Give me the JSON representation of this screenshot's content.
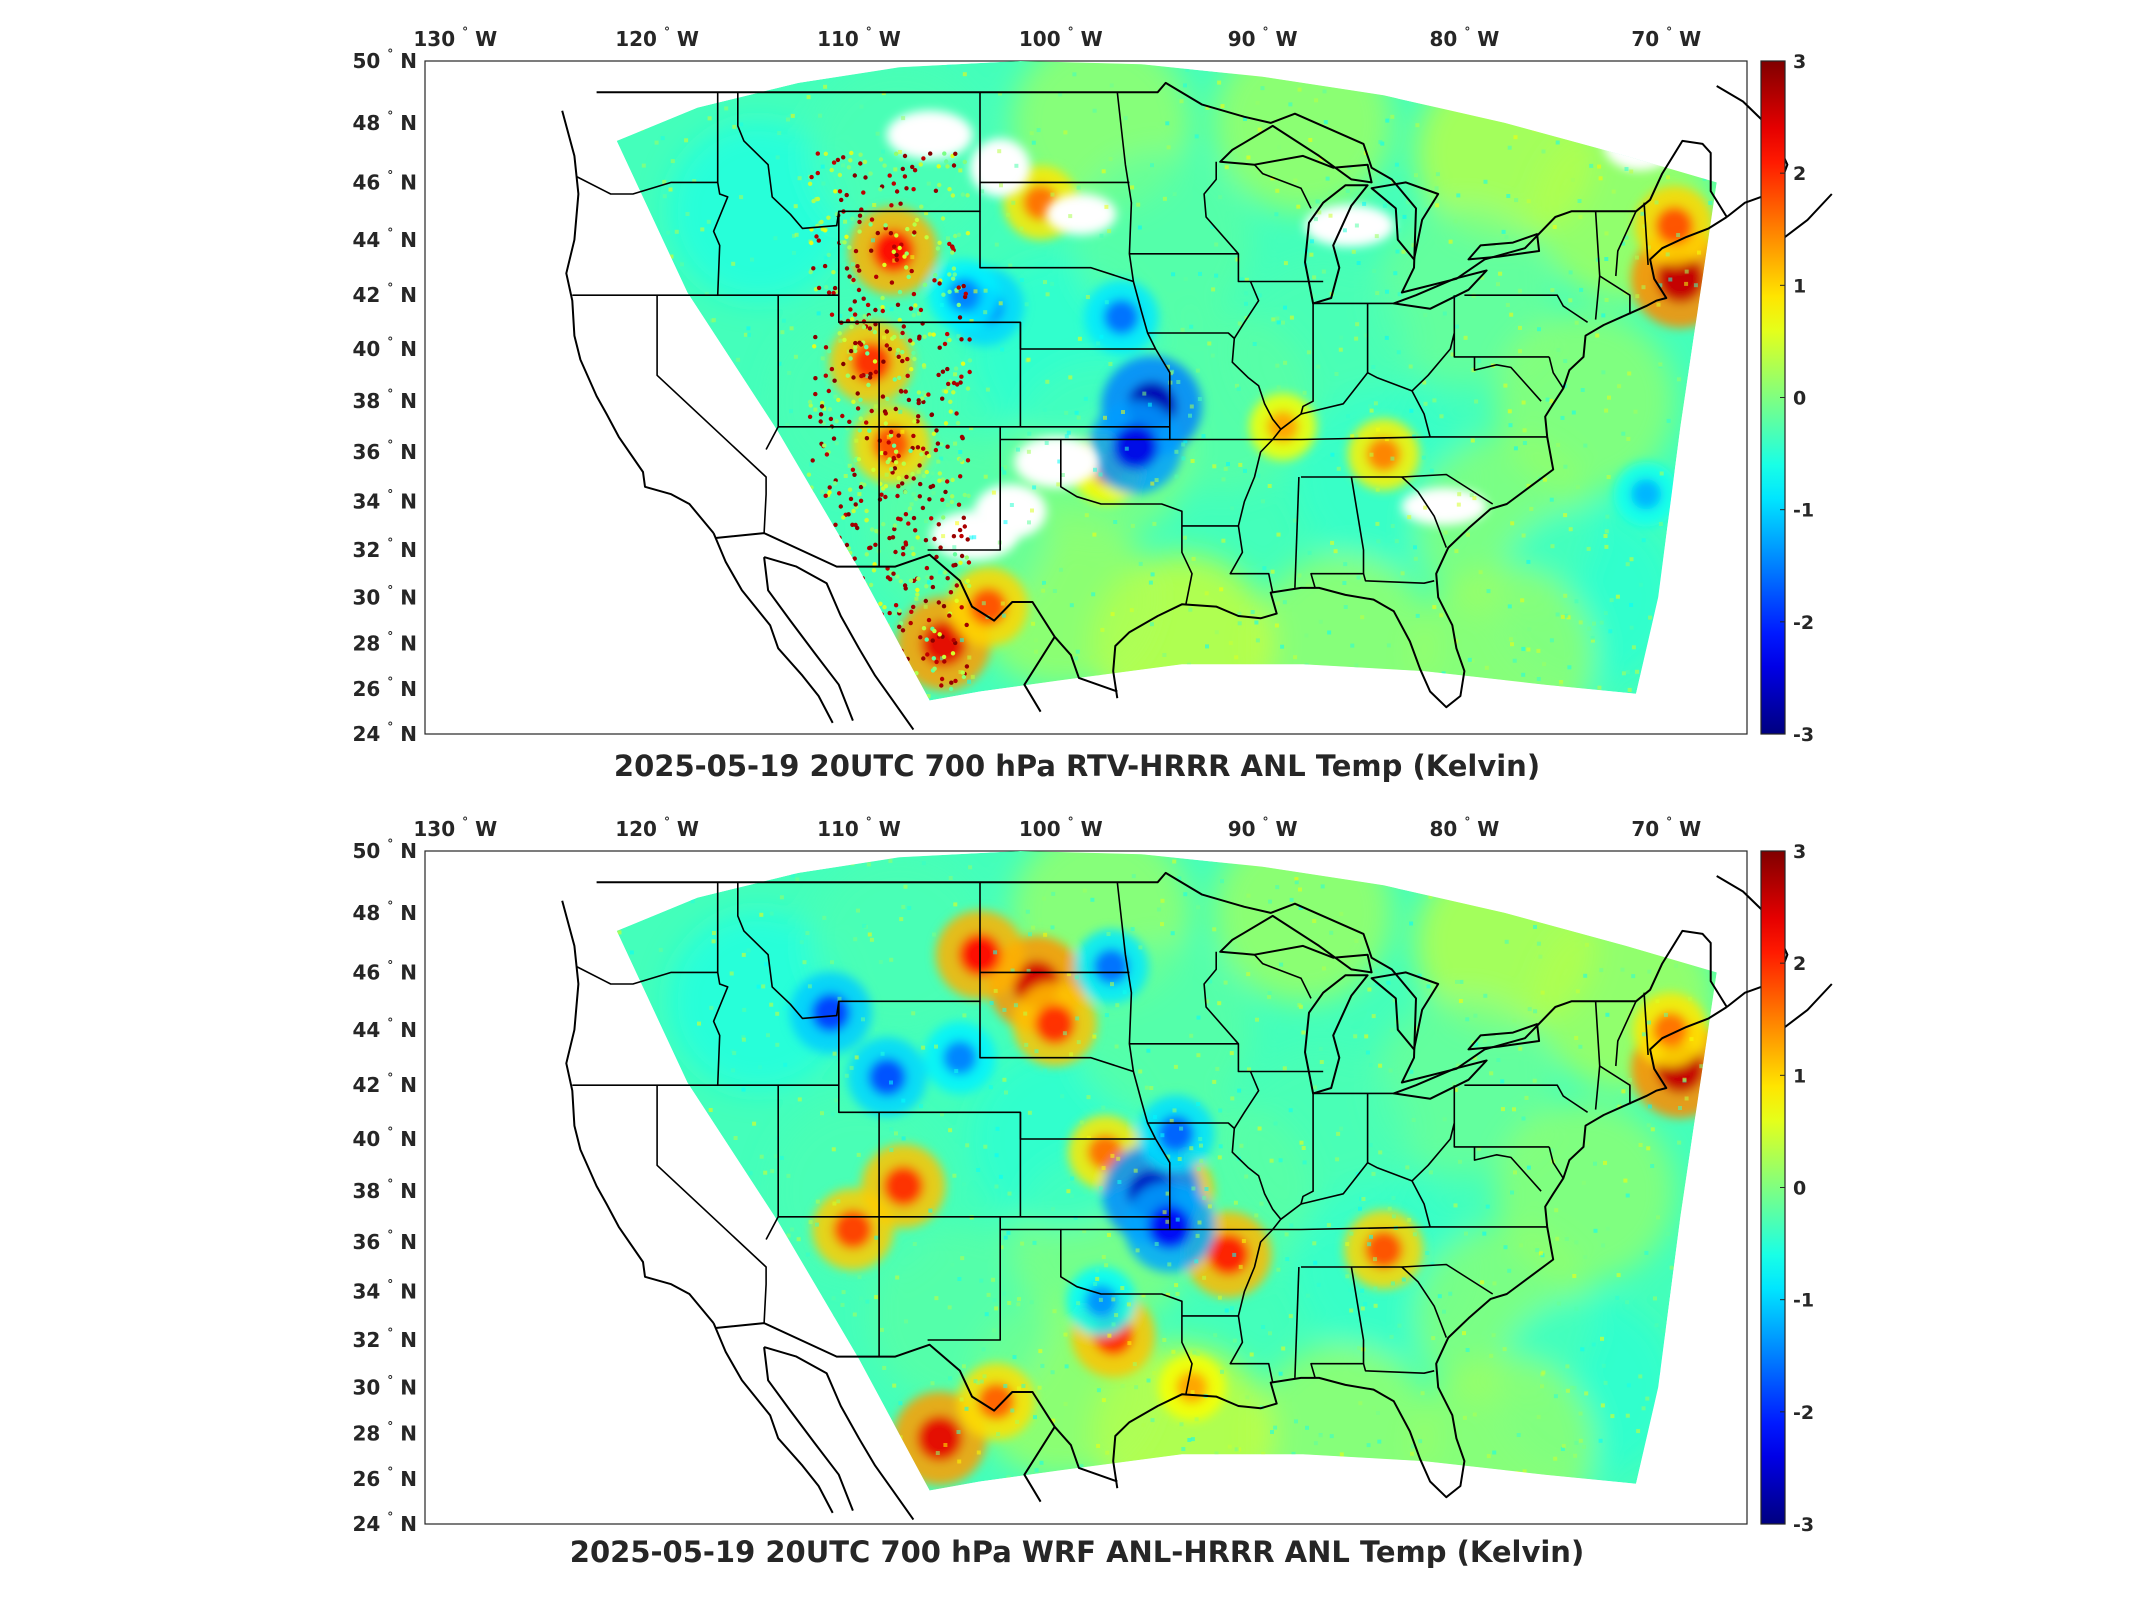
{
  "panels": [
    {
      "title": "2025-05-19 20UTC 700 hPa RTV-HRRR ANL Temp (Kelvin)",
      "field": "rtv",
      "warm_anomalies": [
        {
          "lat": 42.6,
          "lon": -69.3,
          "value": 2.6
        },
        {
          "lat": 44.5,
          "lon": -69.6,
          "value": 1.8
        },
        {
          "lat": 28.0,
          "lon": -105.8,
          "value": 2.4
        },
        {
          "lat": 29.6,
          "lon": -103.6,
          "value": 1.8
        },
        {
          "lat": 45.3,
          "lon": -101.0,
          "value": 1.6
        },
        {
          "lat": 43.6,
          "lon": -108.3,
          "value": 2.2
        },
        {
          "lat": 39.5,
          "lon": -109.4,
          "value": 2.0
        },
        {
          "lat": 36.3,
          "lon": -108.4,
          "value": 1.8
        },
        {
          "lat": 35.9,
          "lon": -84.0,
          "value": 1.5
        },
        {
          "lat": 37.0,
          "lon": -89.0,
          "value": 1.3
        },
        {
          "lat": 35.3,
          "lon": -97.7,
          "value": 1.4
        }
      ],
      "cool_anomalies": [
        {
          "lat": 37.8,
          "lon": -95.5,
          "value": -2.7
        },
        {
          "lat": 36.2,
          "lon": -96.3,
          "value": -2.4
        },
        {
          "lat": 41.6,
          "lon": -103.8,
          "value": -1.8
        },
        {
          "lat": 41.2,
          "lon": -97.0,
          "value": -1.6
        },
        {
          "lat": 34.3,
          "lon": -71.0,
          "value": -1.2
        },
        {
          "lat": 42.0,
          "lon": -104.8,
          "value": -1.5
        }
      ],
      "no_data": [
        {
          "lat": 46.5,
          "lon": -103.0
        },
        {
          "lat": 44.9,
          "lon": -99.0
        },
        {
          "lat": 47.6,
          "lon": -106.5
        },
        {
          "lat": 33.6,
          "lon": -102.5
        },
        {
          "lat": 32.6,
          "lon": -104.3
        },
        {
          "lat": 35.6,
          "lon": -100.2
        },
        {
          "lat": 44.5,
          "lon": -85.7
        },
        {
          "lat": 47.3,
          "lon": -71.3
        },
        {
          "lat": 33.8,
          "lon": -81.0
        }
      ],
      "speckle": true
    },
    {
      "title": "2025-05-19 20UTC 700 hPa WRF ANL-HRRR ANL Temp (Kelvin)",
      "field": "wrf",
      "warm_anomalies": [
        {
          "lat": 45.6,
          "lon": -101.2,
          "value": 2.5
        },
        {
          "lat": 46.6,
          "lon": -104.0,
          "value": 2.2
        },
        {
          "lat": 44.2,
          "lon": -100.3,
          "value": 2.0
        },
        {
          "lat": 42.6,
          "lon": -69.3,
          "value": 2.6
        },
        {
          "lat": 44.0,
          "lon": -69.8,
          "value": 1.6
        },
        {
          "lat": 27.8,
          "lon": -106.0,
          "value": 2.4
        },
        {
          "lat": 29.4,
          "lon": -103.2,
          "value": 1.7
        },
        {
          "lat": 38.2,
          "lon": -107.8,
          "value": 2.0
        },
        {
          "lat": 36.5,
          "lon": -110.3,
          "value": 1.9
        },
        {
          "lat": 38.0,
          "lon": -94.5,
          "value": 2.0
        },
        {
          "lat": 35.5,
          "lon": -91.7,
          "value": 2.1
        },
        {
          "lat": 32.2,
          "lon": -97.4,
          "value": 2.0
        },
        {
          "lat": 39.5,
          "lon": -97.8,
          "value": 1.6
        },
        {
          "lat": 35.7,
          "lon": -84.0,
          "value": 1.8
        },
        {
          "lat": 30.0,
          "lon": -93.5,
          "value": 1.3
        }
      ],
      "cool_anomalies": [
        {
          "lat": 37.9,
          "lon": -95.5,
          "value": -2.6
        },
        {
          "lat": 36.6,
          "lon": -94.6,
          "value": -2.3
        },
        {
          "lat": 44.6,
          "lon": -111.4,
          "value": -1.9
        },
        {
          "lat": 42.3,
          "lon": -108.6,
          "value": -1.8
        },
        {
          "lat": 43.0,
          "lon": -105.0,
          "value": -1.5
        },
        {
          "lat": 40.2,
          "lon": -94.3,
          "value": -1.7
        },
        {
          "lat": 33.6,
          "lon": -98.0,
          "value": -1.4
        },
        {
          "lat": 46.2,
          "lon": -97.5,
          "value": -1.6
        }
      ],
      "no_data": [],
      "speckle": false
    }
  ],
  "axes": {
    "lon_ticks": [
      {
        "label": "130",
        "hemi": "W",
        "value": -130
      },
      {
        "label": "120",
        "hemi": "W",
        "value": -120
      },
      {
        "label": "110",
        "hemi": "W",
        "value": -110
      },
      {
        "label": "100",
        "hemi": "W",
        "value": -100
      },
      {
        "label": "90",
        "hemi": "W",
        "value": -90
      },
      {
        "label": "80",
        "hemi": "W",
        "value": -80
      },
      {
        "label": "70",
        "hemi": "W",
        "value": -70
      }
    ],
    "lat_ticks": [
      {
        "label": "50",
        "hemi": "N",
        "value": 50
      },
      {
        "label": "48",
        "hemi": "N",
        "value": 48
      },
      {
        "label": "46",
        "hemi": "N",
        "value": 46
      },
      {
        "label": "44",
        "hemi": "N",
        "value": 44
      },
      {
        "label": "42",
        "hemi": "N",
        "value": 42
      },
      {
        "label": "40",
        "hemi": "N",
        "value": 40
      },
      {
        "label": "38",
        "hemi": "N",
        "value": 38
      },
      {
        "label": "36",
        "hemi": "N",
        "value": 36
      },
      {
        "label": "34",
        "hemi": "N",
        "value": 34
      },
      {
        "label": "32",
        "hemi": "N",
        "value": 32
      },
      {
        "label": "30",
        "hemi": "N",
        "value": 30
      },
      {
        "label": "28",
        "hemi": "N",
        "value": 28
      },
      {
        "label": "26",
        "hemi": "N",
        "value": 26
      },
      {
        "label": "24",
        "hemi": "N",
        "value": 24
      }
    ],
    "lon_range": [
      -131.5,
      -66.0
    ],
    "lat_range": [
      24,
      50
    ],
    "lat_scale": "mercator",
    "degree_symbol": "°"
  },
  "colorbar": {
    "ticks": [
      "3",
      "2",
      "1",
      "0",
      "-1",
      "-2",
      "-3"
    ],
    "range": [
      -3,
      3
    ],
    "colormap": "jet",
    "colors": [
      "#00008f",
      "#0000ff",
      "#00ffff",
      "#ffff00",
      "#ff0000",
      "#800000"
    ]
  },
  "map_colors": {
    "background": "#ffffff",
    "borders": "#000000",
    "neutral_field": "#7fffa0"
  }
}
